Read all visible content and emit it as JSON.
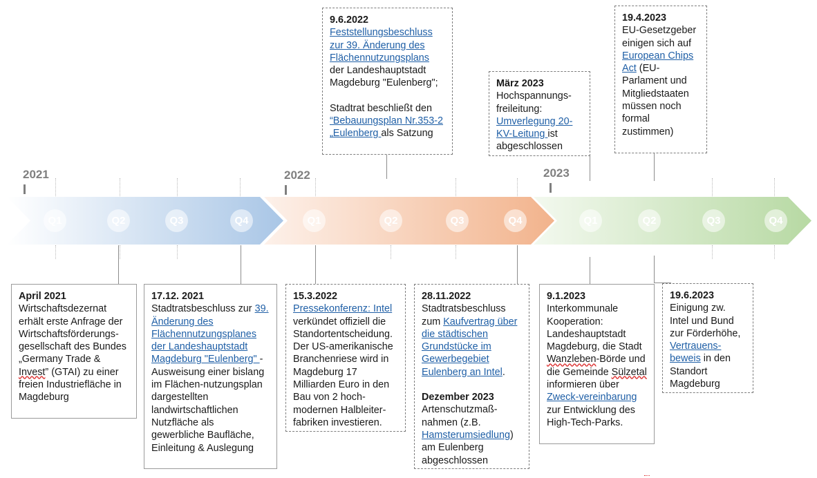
{
  "years": [
    "2021",
    "2022",
    "2023"
  ],
  "quarters": [
    "Q1",
    "Q2",
    "Q3",
    "Q4"
  ],
  "colors": {
    "year2021": "#a9c6e6",
    "year2022": "#f2b38c",
    "year2023": "#b7d9a3",
    "link": "#1f5fa6"
  },
  "top_events": [
    {
      "date": "9.6.2022",
      "p1": [
        "Feststellungsbeschluss zur 39. Änderung des Flächennutzungsplans",
        " der Landeshauptstadt Magdeburg \"Eulenberg\";"
      ],
      "p2": [
        "Stadtrat beschließt den ",
        "“Bebauungsplan Nr.353-2 „Eulenberg ",
        "als Satzung"
      ]
    },
    {
      "date": "März 2023",
      "t": [
        "Hochspannungs-freileitung: ",
        "Umverlegung 20-KV-Leitung ",
        "ist abgeschlossen"
      ]
    },
    {
      "date": "19.4.2023",
      "t": [
        "EU-Gesetzgeber einigen sich auf ",
        "European Chips Act",
        " (EU-Parlament und Mitgliedstaaten müssen noch formal zustimmen)"
      ]
    }
  ],
  "bottom_events": [
    {
      "date": "April 2021",
      "t": [
        "Wirtschaftsdezernat erhält erste Anfrage der Wirtschaftsförderungs-gesellschaft des Bundes „Germany Trade & ",
        "Invest",
        "” (GTAI) zu einer freien Industriefläche in Magdeburg"
      ]
    },
    {
      "date": "17.12. 2021",
      "t": [
        "Stadtratsbeschluss zur ",
        "39. Änderung des Flächennutzungsplanes der Landeshauptstadt Magdeburg \"Eulenberg\" ",
        "- Ausweisung einer bislang im Flächen-nutzungsplan dargestellten landwirtschaftlichen Nutzfläche als gewerbliche Baufläche, Einleitung & Auslegung"
      ]
    },
    {
      "date": "15.3.2022",
      "t": [
        "Pressekonferenz: Intel",
        " verkündet offiziell die Standortentscheidung. Der US-amerikanische Branchenriese wird in Magdeburg 17 Milliarden Euro in den Bau von 2 hoch-modernen Halbleiter-fabriken investieren."
      ]
    },
    {
      "date": "28.11.2022",
      "t": [
        "Stadtratsbeschluss zum ",
        "Kaufvertrag über die städtischen Grundstücke im Gewerbegebiet Eulenberg an Intel",
        "."
      ],
      "date2": "Dezember 2023",
      "t2": [
        "Artenschutzmaß-nahmen (z.B. ",
        "Hamsterumsiedlung",
        ") am Eulenberg abgeschlossen"
      ]
    },
    {
      "date": "9.1.2023",
      "t": [
        "Interkommunale Kooperation: Landeshauptstadt Magdeburg, die Stadt ",
        "Wanzleben",
        "-Börde und die Gemeinde ",
        "Sülzetal",
        " informieren über ",
        "Zweck-vereinbarung",
        " zur Entwicklung des High-Tech-Parks."
      ]
    },
    {
      "date": "19.6.2023",
      "t": [
        "Einigung zw. Intel und Bund zur Förderhöhe, ",
        "Vertrauens-beweis",
        " in den Standort Magdeburg"
      ]
    }
  ]
}
